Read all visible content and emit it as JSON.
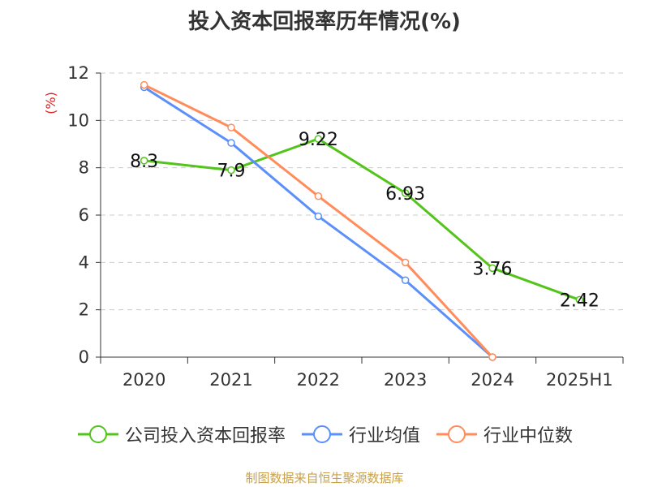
{
  "title": "投入资本回报率历年情况(%)",
  "source": "制图数据来自恒生聚源数据库",
  "colors": {
    "company": "#52c41a",
    "industry_avg": "#5b8ff9",
    "industry_median": "#ff8c5a",
    "unit_label": "#e02020"
  },
  "chart_data": {
    "type": "line",
    "title": "投入资本回报率历年情况(%)",
    "ylabel": "(%)",
    "ylim": [
      0,
      12
    ],
    "yticks": [
      0,
      2,
      4,
      6,
      8,
      10,
      12
    ],
    "grid": true,
    "legend_position": "bottom",
    "categories": [
      "2020",
      "2021",
      "2022",
      "2023",
      "2024",
      "2025H1"
    ],
    "series": [
      {
        "name": "公司投入资本回报率",
        "color": "#52c41a",
        "labels": true,
        "values": [
          8.3,
          7.9,
          9.22,
          6.93,
          3.76,
          2.42
        ],
        "value_labels": [
          "8.3",
          "7.9",
          "9.22",
          "6.93",
          "3.76",
          "2.42"
        ]
      },
      {
        "name": "行业均值",
        "color": "#5b8ff9",
        "labels": false,
        "values": [
          11.4,
          9.05,
          5.95,
          3.25,
          0,
          null
        ]
      },
      {
        "name": "行业中位数",
        "color": "#ff8c5a",
        "labels": false,
        "values": [
          11.5,
          9.7,
          6.8,
          4.0,
          0,
          null
        ]
      }
    ]
  }
}
